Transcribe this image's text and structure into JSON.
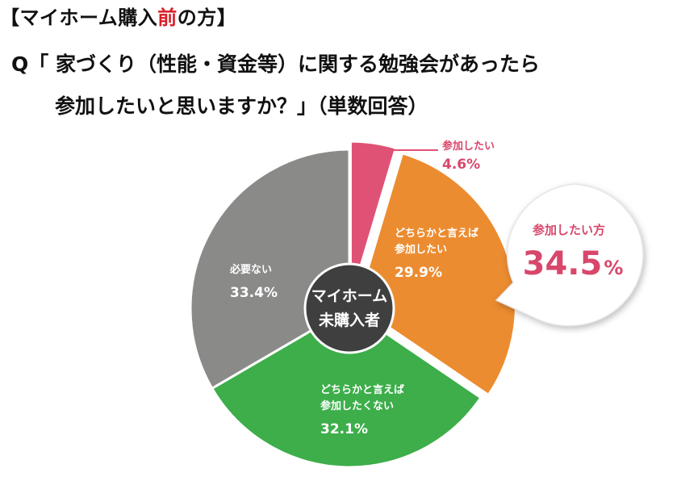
{
  "header": {
    "title_prefix": "【マイホーム購入",
    "title_accent": "前",
    "title_suffix": "の方】",
    "accent_color": "#d81e28"
  },
  "question": {
    "line1": "Q「 家づくり（性能・資金等）に関する勉強会があったら",
    "line2": "参加したいと思いますか？」（単数回答）"
  },
  "center_label": {
    "line1": "マイホーム",
    "line2": "未購入者"
  },
  "callout": {
    "title": "参加したい方",
    "value": "34.5",
    "unit": "%"
  },
  "slice_labels": {
    "s0": {
      "line1": "参加したい",
      "pct": "4.6%"
    },
    "s1": {
      "line1": "どちらかと言えば",
      "line2": "参加したい",
      "pct": "29.9%"
    },
    "s2": {
      "line1": "どちらかと言えば",
      "line2": "参加したくない",
      "pct": "32.1%"
    },
    "s3": {
      "line1": "必要ない",
      "pct": "33.4%"
    }
  },
  "chart_data": {
    "type": "pie",
    "title": "",
    "categories": [
      "参加したい",
      "どちらかと言えば参加したい",
      "どちらかと言えば参加したくない",
      "必要ない"
    ],
    "values": [
      4.6,
      29.9,
      32.1,
      33.4
    ],
    "colors": [
      "#e05275",
      "#ec8c30",
      "#3dae4a",
      "#8a8a89"
    ],
    "exploded": [
      true,
      true,
      false,
      false
    ],
    "center_color": "#3f3f3f",
    "callout_color": "#d8476b"
  }
}
